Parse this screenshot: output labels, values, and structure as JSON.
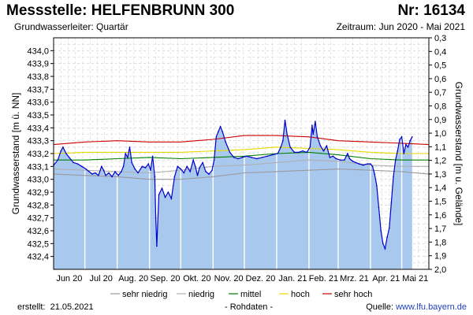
{
  "header": {
    "title": "Messstelle: HELFENBRUNN 300",
    "nr": "Nr: 16134",
    "aquifer": "Grundwasserleiter: Quartär",
    "period": "Zeitraum: Jun 2020 - Mai 2021"
  },
  "footer": {
    "created_label": "erstellt:",
    "created_date": "21.05.2021",
    "raw_label": "- Rohdaten -",
    "source_label": "Quelle:",
    "source_url": "www.lfu.bayern.de"
  },
  "colors": {
    "area_fill": "#a9c8ee",
    "level_line": "#0000cc",
    "sehr_niedrig": "#9a9a9a",
    "niedrig": "#b0b0b0",
    "mittel": "#008000",
    "hoch": "#e8d800",
    "sehr_hoch": "#cc0000",
    "grid": "#c8c8c8",
    "month_line": "#ffffff"
  },
  "chart_data": {
    "type": "area",
    "ylabel": "Grundwasserstand [m ü. NN]",
    "y2label": "Grundwasserstand [m u. Gelände]",
    "ylim": [
      432.3,
      434.1
    ],
    "yticks": [
      "432,4",
      "432,5",
      "432,6",
      "432,7",
      "432,8",
      "432,9",
      "433,0",
      "433,1",
      "433,2",
      "433,3",
      "433,4",
      "433,5",
      "433,6",
      "433,7",
      "433,8",
      "433,9",
      "434,0"
    ],
    "y2ticks": [
      "0,3",
      "0,4",
      "0,5",
      "0,6",
      "0,7",
      "0,8",
      "0,9",
      "1,0",
      "1,1",
      "1,2",
      "1,3",
      "1,4",
      "1,5",
      "1,6",
      "1,7",
      "1,8",
      "1,9",
      "2,0"
    ],
    "xlim": [
      "2020-06-01",
      "2021-05-27"
    ],
    "xticks": [
      "Jun 20",
      "Jul 20",
      "Aug. 20",
      "Sep. 20",
      "Okt. 20",
      "Nov. 20",
      "Dez. 20",
      "Jan. 21",
      "Feb. 21",
      "Mrz. 21",
      "Apr. 21",
      "Mai 21"
    ],
    "grid": true,
    "legend_position": "bottom",
    "legend": [
      "sehr niedrig",
      "niedrig",
      "mittel",
      "hoch",
      "sehr hoch"
    ],
    "series": [
      {
        "name": "Grundwasserstand",
        "points": [
          [
            "2020-06-01",
            433.11
          ],
          [
            "2020-06-05",
            433.15
          ],
          [
            "2020-06-08",
            433.22
          ],
          [
            "2020-06-10",
            433.25
          ],
          [
            "2020-06-13",
            433.2
          ],
          [
            "2020-06-16",
            433.17
          ],
          [
            "2020-06-20",
            433.13
          ],
          [
            "2020-06-24",
            433.12
          ],
          [
            "2020-06-28",
            433.1
          ],
          [
            "2020-07-02",
            433.08
          ],
          [
            "2020-07-05",
            433.06
          ],
          [
            "2020-07-08",
            433.04
          ],
          [
            "2020-07-11",
            433.05
          ],
          [
            "2020-07-14",
            433.03
          ],
          [
            "2020-07-17",
            433.1
          ],
          [
            "2020-07-19",
            433.07
          ],
          [
            "2020-07-21",
            433.03
          ],
          [
            "2020-07-24",
            433.05
          ],
          [
            "2020-07-27",
            433.02
          ],
          [
            "2020-07-30",
            433.06
          ],
          [
            "2020-08-02",
            433.03
          ],
          [
            "2020-08-05",
            433.06
          ],
          [
            "2020-08-07",
            433.1
          ],
          [
            "2020-08-09",
            433.2
          ],
          [
            "2020-08-11",
            433.17
          ],
          [
            "2020-08-13",
            433.25
          ],
          [
            "2020-08-15",
            433.13
          ],
          [
            "2020-08-18",
            433.08
          ],
          [
            "2020-08-21",
            433.05
          ],
          [
            "2020-08-25",
            433.1
          ],
          [
            "2020-08-28",
            433.09
          ],
          [
            "2020-08-31",
            433.12
          ],
          [
            "2020-09-02",
            433.07
          ],
          [
            "2020-09-04",
            433.18
          ],
          [
            "2020-09-06",
            433.02
          ],
          [
            "2020-09-07",
            432.7
          ],
          [
            "2020-09-08",
            432.48
          ],
          [
            "2020-09-10",
            432.88
          ],
          [
            "2020-09-13",
            432.93
          ],
          [
            "2020-09-16",
            432.86
          ],
          [
            "2020-09-19",
            432.9
          ],
          [
            "2020-09-22",
            432.85
          ],
          [
            "2020-09-25",
            433.02
          ],
          [
            "2020-09-28",
            433.1
          ],
          [
            "2020-10-01",
            433.08
          ],
          [
            "2020-10-04",
            433.05
          ],
          [
            "2020-10-07",
            433.1
          ],
          [
            "2020-10-10",
            433.06
          ],
          [
            "2020-10-13",
            433.15
          ],
          [
            "2020-10-15",
            433.1
          ],
          [
            "2020-10-17",
            433.03
          ],
          [
            "2020-10-19",
            433.09
          ],
          [
            "2020-10-22",
            433.13
          ],
          [
            "2020-10-25",
            433.06
          ],
          [
            "2020-10-28",
            433.04
          ],
          [
            "2020-10-31",
            433.07
          ],
          [
            "2020-11-02",
            433.15
          ],
          [
            "2020-11-04",
            433.33
          ],
          [
            "2020-11-06",
            433.37
          ],
          [
            "2020-11-08",
            433.41
          ],
          [
            "2020-11-10",
            433.37
          ],
          [
            "2020-11-13",
            433.29
          ],
          [
            "2020-11-17",
            433.21
          ],
          [
            "2020-11-21",
            433.17
          ],
          [
            "2020-11-25",
            433.16
          ],
          [
            "2020-11-29",
            433.17
          ],
          [
            "2020-12-03",
            433.18
          ],
          [
            "2020-12-08",
            433.17
          ],
          [
            "2020-12-13",
            433.16
          ],
          [
            "2020-12-18",
            433.17
          ],
          [
            "2020-12-23",
            433.18
          ],
          [
            "2020-12-28",
            433.19
          ],
          [
            "2021-01-02",
            433.2
          ],
          [
            "2021-01-05",
            433.25
          ],
          [
            "2021-01-07",
            433.3
          ],
          [
            "2021-01-09",
            433.46
          ],
          [
            "2021-01-11",
            433.35
          ],
          [
            "2021-01-14",
            433.25
          ],
          [
            "2021-01-18",
            433.21
          ],
          [
            "2021-01-22",
            433.21
          ],
          [
            "2021-01-26",
            433.22
          ],
          [
            "2021-01-30",
            433.21
          ],
          [
            "2021-02-02",
            433.25
          ],
          [
            "2021-02-04",
            433.42
          ],
          [
            "2021-02-05",
            433.35
          ],
          [
            "2021-02-07",
            433.45
          ],
          [
            "2021-02-09",
            433.33
          ],
          [
            "2021-02-12",
            433.26
          ],
          [
            "2021-02-15",
            433.22
          ],
          [
            "2021-02-18",
            433.26
          ],
          [
            "2021-02-21",
            433.17
          ],
          [
            "2021-02-24",
            433.18
          ],
          [
            "2021-02-27",
            433.16
          ],
          [
            "2021-03-03",
            433.15
          ],
          [
            "2021-03-07",
            433.15
          ],
          [
            "2021-03-10",
            433.2
          ],
          [
            "2021-03-12",
            433.16
          ],
          [
            "2021-03-15",
            433.14
          ],
          [
            "2021-03-18",
            433.13
          ],
          [
            "2021-03-21",
            433.12
          ],
          [
            "2021-03-25",
            433.11
          ],
          [
            "2021-03-29",
            433.12
          ],
          [
            "2021-04-01",
            433.12
          ],
          [
            "2021-04-03",
            433.1
          ],
          [
            "2021-04-05",
            433.04
          ],
          [
            "2021-04-07",
            432.95
          ],
          [
            "2021-04-09",
            432.78
          ],
          [
            "2021-04-11",
            432.6
          ],
          [
            "2021-04-13",
            432.5
          ],
          [
            "2021-04-15",
            432.46
          ],
          [
            "2021-04-17",
            432.55
          ],
          [
            "2021-04-19",
            432.62
          ],
          [
            "2021-04-21",
            432.82
          ],
          [
            "2021-04-23",
            433.02
          ],
          [
            "2021-04-25",
            433.15
          ],
          [
            "2021-04-27",
            433.22
          ],
          [
            "2021-04-29",
            433.31
          ],
          [
            "2021-05-01",
            433.33
          ],
          [
            "2021-05-03",
            433.2
          ],
          [
            "2021-05-05",
            433.27
          ],
          [
            "2021-05-07",
            433.25
          ],
          [
            "2021-05-09",
            433.3
          ],
          [
            "2021-05-11",
            433.33
          ]
        ]
      },
      {
        "name": "sehr hoch",
        "points": [
          [
            "2020-06-01",
            433.27
          ],
          [
            "2020-07-01",
            433.29
          ],
          [
            "2020-08-01",
            433.3
          ],
          [
            "2020-09-01",
            433.29
          ],
          [
            "2020-10-01",
            433.29
          ],
          [
            "2020-11-01",
            433.31
          ],
          [
            "2020-12-01",
            433.34
          ],
          [
            "2021-01-01",
            433.34
          ],
          [
            "2021-02-01",
            433.33
          ],
          [
            "2021-03-01",
            433.3
          ],
          [
            "2021-04-01",
            433.29
          ],
          [
            "2021-05-01",
            433.28
          ],
          [
            "2021-05-27",
            433.27
          ]
        ]
      },
      {
        "name": "hoch",
        "points": [
          [
            "2020-06-01",
            433.2
          ],
          [
            "2020-07-01",
            433.21
          ],
          [
            "2020-08-01",
            433.21
          ],
          [
            "2020-09-01",
            433.21
          ],
          [
            "2020-10-01",
            433.21
          ],
          [
            "2020-11-01",
            433.22
          ],
          [
            "2020-12-01",
            433.23
          ],
          [
            "2021-01-01",
            433.25
          ],
          [
            "2021-02-01",
            433.24
          ],
          [
            "2021-03-01",
            433.23
          ],
          [
            "2021-04-01",
            433.21
          ],
          [
            "2021-05-01",
            433.2
          ],
          [
            "2021-05-27",
            433.2
          ]
        ]
      },
      {
        "name": "mittel",
        "points": [
          [
            "2020-06-01",
            433.15
          ],
          [
            "2020-07-01",
            433.15
          ],
          [
            "2020-08-01",
            433.16
          ],
          [
            "2020-09-01",
            433.17
          ],
          [
            "2020-10-01",
            433.16
          ],
          [
            "2020-11-01",
            433.17
          ],
          [
            "2020-12-01",
            433.18
          ],
          [
            "2021-01-01",
            433.2
          ],
          [
            "2021-02-01",
            433.21
          ],
          [
            "2021-03-01",
            433.19
          ],
          [
            "2021-04-01",
            433.16
          ],
          [
            "2021-05-01",
            433.15
          ],
          [
            "2021-05-27",
            433.15
          ]
        ]
      },
      {
        "name": "niedrig",
        "points": [
          [
            "2020-06-01",
            433.08
          ],
          [
            "2020-07-01",
            433.07
          ],
          [
            "2020-08-01",
            433.06
          ],
          [
            "2020-09-01",
            433.05
          ],
          [
            "2020-10-01",
            433.07
          ],
          [
            "2020-11-01",
            433.1
          ],
          [
            "2020-12-01",
            433.11
          ],
          [
            "2021-01-01",
            433.13
          ],
          [
            "2021-02-01",
            433.15
          ],
          [
            "2021-03-01",
            433.14
          ],
          [
            "2021-04-01",
            433.11
          ],
          [
            "2021-05-01",
            433.1
          ],
          [
            "2021-05-27",
            433.1
          ]
        ]
      },
      {
        "name": "sehr niedrig",
        "points": [
          [
            "2020-06-01",
            433.04
          ],
          [
            "2020-07-01",
            433.03
          ],
          [
            "2020-08-01",
            433.02
          ],
          [
            "2020-09-01",
            433.0
          ],
          [
            "2020-10-01",
            433.0
          ],
          [
            "2020-11-01",
            433.02
          ],
          [
            "2020-12-01",
            433.05
          ],
          [
            "2021-01-01",
            433.06
          ],
          [
            "2021-02-01",
            433.07
          ],
          [
            "2021-03-01",
            433.08
          ],
          [
            "2021-04-01",
            433.07
          ],
          [
            "2021-05-01",
            433.06
          ],
          [
            "2021-05-27",
            433.04
          ]
        ]
      }
    ]
  }
}
